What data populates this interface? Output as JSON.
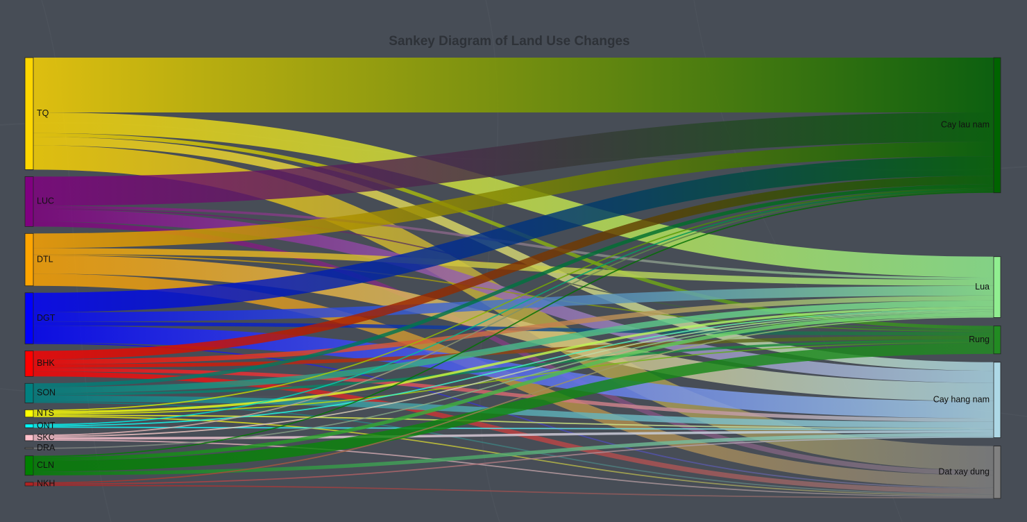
{
  "title": "Sankey Diagram of Land Use Changes",
  "chart_data": {
    "type": "sankey",
    "title": "Sankey Diagram of Land Use Changes",
    "background": "#474d56",
    "sources": [
      {
        "id": "TQ",
        "label": "TQ",
        "color": "#ffd700"
      },
      {
        "id": "LUC",
        "label": "LUC",
        "color": "#800080"
      },
      {
        "id": "DTL",
        "label": "DTL",
        "color": "#ffa500"
      },
      {
        "id": "DGT",
        "label": "DGT",
        "color": "#0000ff"
      },
      {
        "id": "BHK",
        "label": "BHK",
        "color": "#ff0000"
      },
      {
        "id": "SON",
        "label": "SON",
        "color": "#008080"
      },
      {
        "id": "NTS",
        "label": "NTS",
        "color": "#ffff00"
      },
      {
        "id": "ONT",
        "label": "ONT",
        "color": "#00ffff"
      },
      {
        "id": "SKC",
        "label": "SKC",
        "color": "#ffc0cb"
      },
      {
        "id": "DRA",
        "label": "DRA",
        "color": "#808080"
      },
      {
        "id": "CLN",
        "label": "CLN",
        "color": "#008000"
      },
      {
        "id": "NKH",
        "label": "NKH",
        "color": "#b22222"
      }
    ],
    "targets": [
      {
        "id": "Cay lau nam",
        "label": "Cay lau nam",
        "color": "#006400"
      },
      {
        "id": "Lua",
        "label": "Lua",
        "color": "#90ee90"
      },
      {
        "id": "Rung",
        "label": "Rung",
        "color": "#228b22"
      },
      {
        "id": "Cay hang nam",
        "label": "Cay hang nam",
        "color": "#add8e6"
      },
      {
        "id": "Dat xay dung",
        "label": "Dat xay dung",
        "color": "#808080"
      }
    ],
    "links": [
      {
        "source": "TQ",
        "target": "Cay lau nam",
        "value": 45
      },
      {
        "source": "TQ",
        "target": "Lua",
        "value": 17
      },
      {
        "source": "TQ",
        "target": "Rung",
        "value": 3
      },
      {
        "source": "TQ",
        "target": "Cay hang nam",
        "value": 7
      },
      {
        "source": "TQ",
        "target": "Dat xay dung",
        "value": 20
      },
      {
        "source": "LUC",
        "target": "Cay lau nam",
        "value": 24
      },
      {
        "source": "LUC",
        "target": "Lua",
        "value": 2
      },
      {
        "source": "LUC",
        "target": "Rung",
        "value": 1
      },
      {
        "source": "LUC",
        "target": "Cay hang nam",
        "value": 10
      },
      {
        "source": "LUC",
        "target": "Dat xay dung",
        "value": 4
      },
      {
        "source": "DTL",
        "target": "Cay lau nam",
        "value": 12
      },
      {
        "source": "DTL",
        "target": "Lua",
        "value": 5
      },
      {
        "source": "DTL",
        "target": "Rung",
        "value": 1
      },
      {
        "source": "DTL",
        "target": "Cay hang nam",
        "value": 15
      },
      {
        "source": "DTL",
        "target": "Dat xay dung",
        "value": 10
      },
      {
        "source": "DGT",
        "target": "Cay lau nam",
        "value": 16
      },
      {
        "source": "DGT",
        "target": "Lua",
        "value": 8
      },
      {
        "source": "DGT",
        "target": "Rung",
        "value": 3
      },
      {
        "source": "DGT",
        "target": "Cay hang nam",
        "value": 14
      },
      {
        "source": "DGT",
        "target": "Dat xay dung",
        "value": 1
      },
      {
        "source": "BHK",
        "target": "Cay lau nam",
        "value": 7
      },
      {
        "source": "BHK",
        "target": "Lua",
        "value": 4
      },
      {
        "source": "BHK",
        "target": "Rung",
        "value": 3
      },
      {
        "source": "BHK",
        "target": "Cay hang nam",
        "value": 3
      },
      {
        "source": "BHK",
        "target": "Dat xay dung",
        "value": 4
      },
      {
        "source": "SON",
        "target": "Cay lau nam",
        "value": 3
      },
      {
        "source": "SON",
        "target": "Lua",
        "value": 5
      },
      {
        "source": "SON",
        "target": "Rung",
        "value": 2
      },
      {
        "source": "SON",
        "target": "Cay hang nam",
        "value": 5
      },
      {
        "source": "SON",
        "target": "Dat xay dung",
        "value": 1
      },
      {
        "source": "NTS",
        "target": "Cay lau nam",
        "value": 1
      },
      {
        "source": "NTS",
        "target": "Lua",
        "value": 2
      },
      {
        "source": "NTS",
        "target": "Rung",
        "value": 1
      },
      {
        "source": "NTS",
        "target": "Cay hang nam",
        "value": 1
      },
      {
        "source": "NTS",
        "target": "Dat xay dung",
        "value": 1
      },
      {
        "source": "ONT",
        "target": "Cay lau nam",
        "value": 1
      },
      {
        "source": "ONT",
        "target": "Lua",
        "value": 1
      },
      {
        "source": "ONT",
        "target": "Cay hang nam",
        "value": 1
      },
      {
        "source": "SKC",
        "target": "Cay lau nam",
        "value": 1
      },
      {
        "source": "SKC",
        "target": "Lua",
        "value": 1
      },
      {
        "source": "SKC",
        "target": "Cay hang nam",
        "value": 2
      },
      {
        "source": "SKC",
        "target": "Dat xay dung",
        "value": 1
      },
      {
        "source": "DRA",
        "target": "Lua",
        "value": 1
      },
      {
        "source": "CLN",
        "target": "Cay lau nam",
        "value": 1
      },
      {
        "source": "CLN",
        "target": "Lua",
        "value": 3
      },
      {
        "source": "CLN",
        "target": "Rung",
        "value": 9
      },
      {
        "source": "CLN",
        "target": "Cay hang nam",
        "value": 3
      },
      {
        "source": "NKH",
        "target": "Lua",
        "value": 1
      },
      {
        "source": "NKH",
        "target": "Cay hang nam",
        "value": 1
      },
      {
        "source": "NKH",
        "target": "Dat xay dung",
        "value": 1
      }
    ]
  }
}
